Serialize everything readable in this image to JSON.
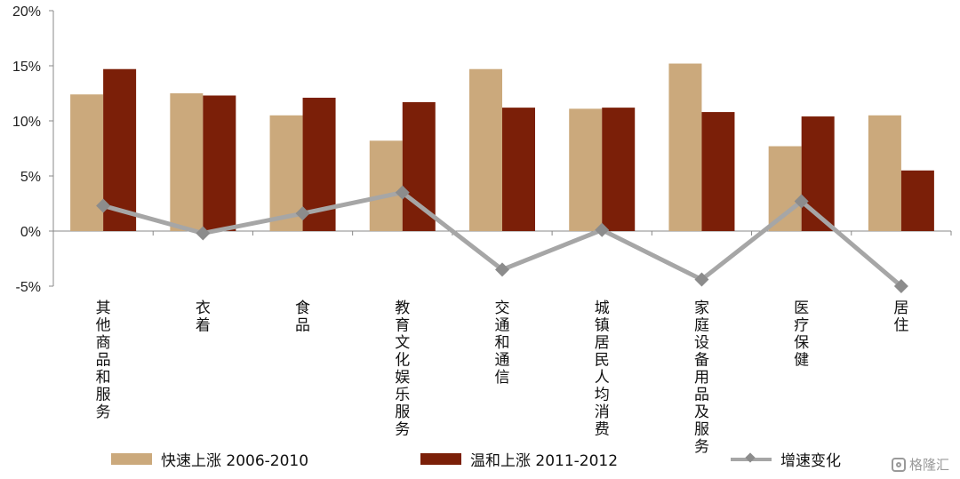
{
  "chart_data": {
    "type": "bar",
    "categories": [
      "其他商品和服务",
      "衣着",
      "食品",
      "教育文化娱乐服务",
      "交通和通信",
      "城镇居民人均消费",
      "家庭设备用品及服务",
      "医疗保健",
      "居住"
    ],
    "series": [
      {
        "name": "快速上涨 2006-2010",
        "type": "bar",
        "color": "#cba97c",
        "values": [
          12.4,
          12.5,
          10.5,
          8.2,
          14.7,
          11.1,
          15.2,
          7.7,
          10.5
        ]
      },
      {
        "name": "温和上涨 2011-2012",
        "type": "bar",
        "color": "#7b1f08",
        "values": [
          14.7,
          12.3,
          12.1,
          11.7,
          11.2,
          11.2,
          10.8,
          10.4,
          5.5
        ]
      },
      {
        "name": "增速变化",
        "type": "line",
        "color": "#a6a6a6",
        "values": [
          2.3,
          -0.2,
          1.6,
          3.5,
          -3.5,
          0.1,
          -4.4,
          2.7,
          -5.0
        ]
      }
    ],
    "ylim": [
      -5,
      20
    ],
    "yticks": [
      "20%",
      "15%",
      "10%",
      "5%",
      "0%",
      "-5%"
    ],
    "ytick_values": [
      20,
      15,
      10,
      5,
      0,
      -5
    ],
    "legend_position": "bottom"
  },
  "watermark": "格隆汇"
}
